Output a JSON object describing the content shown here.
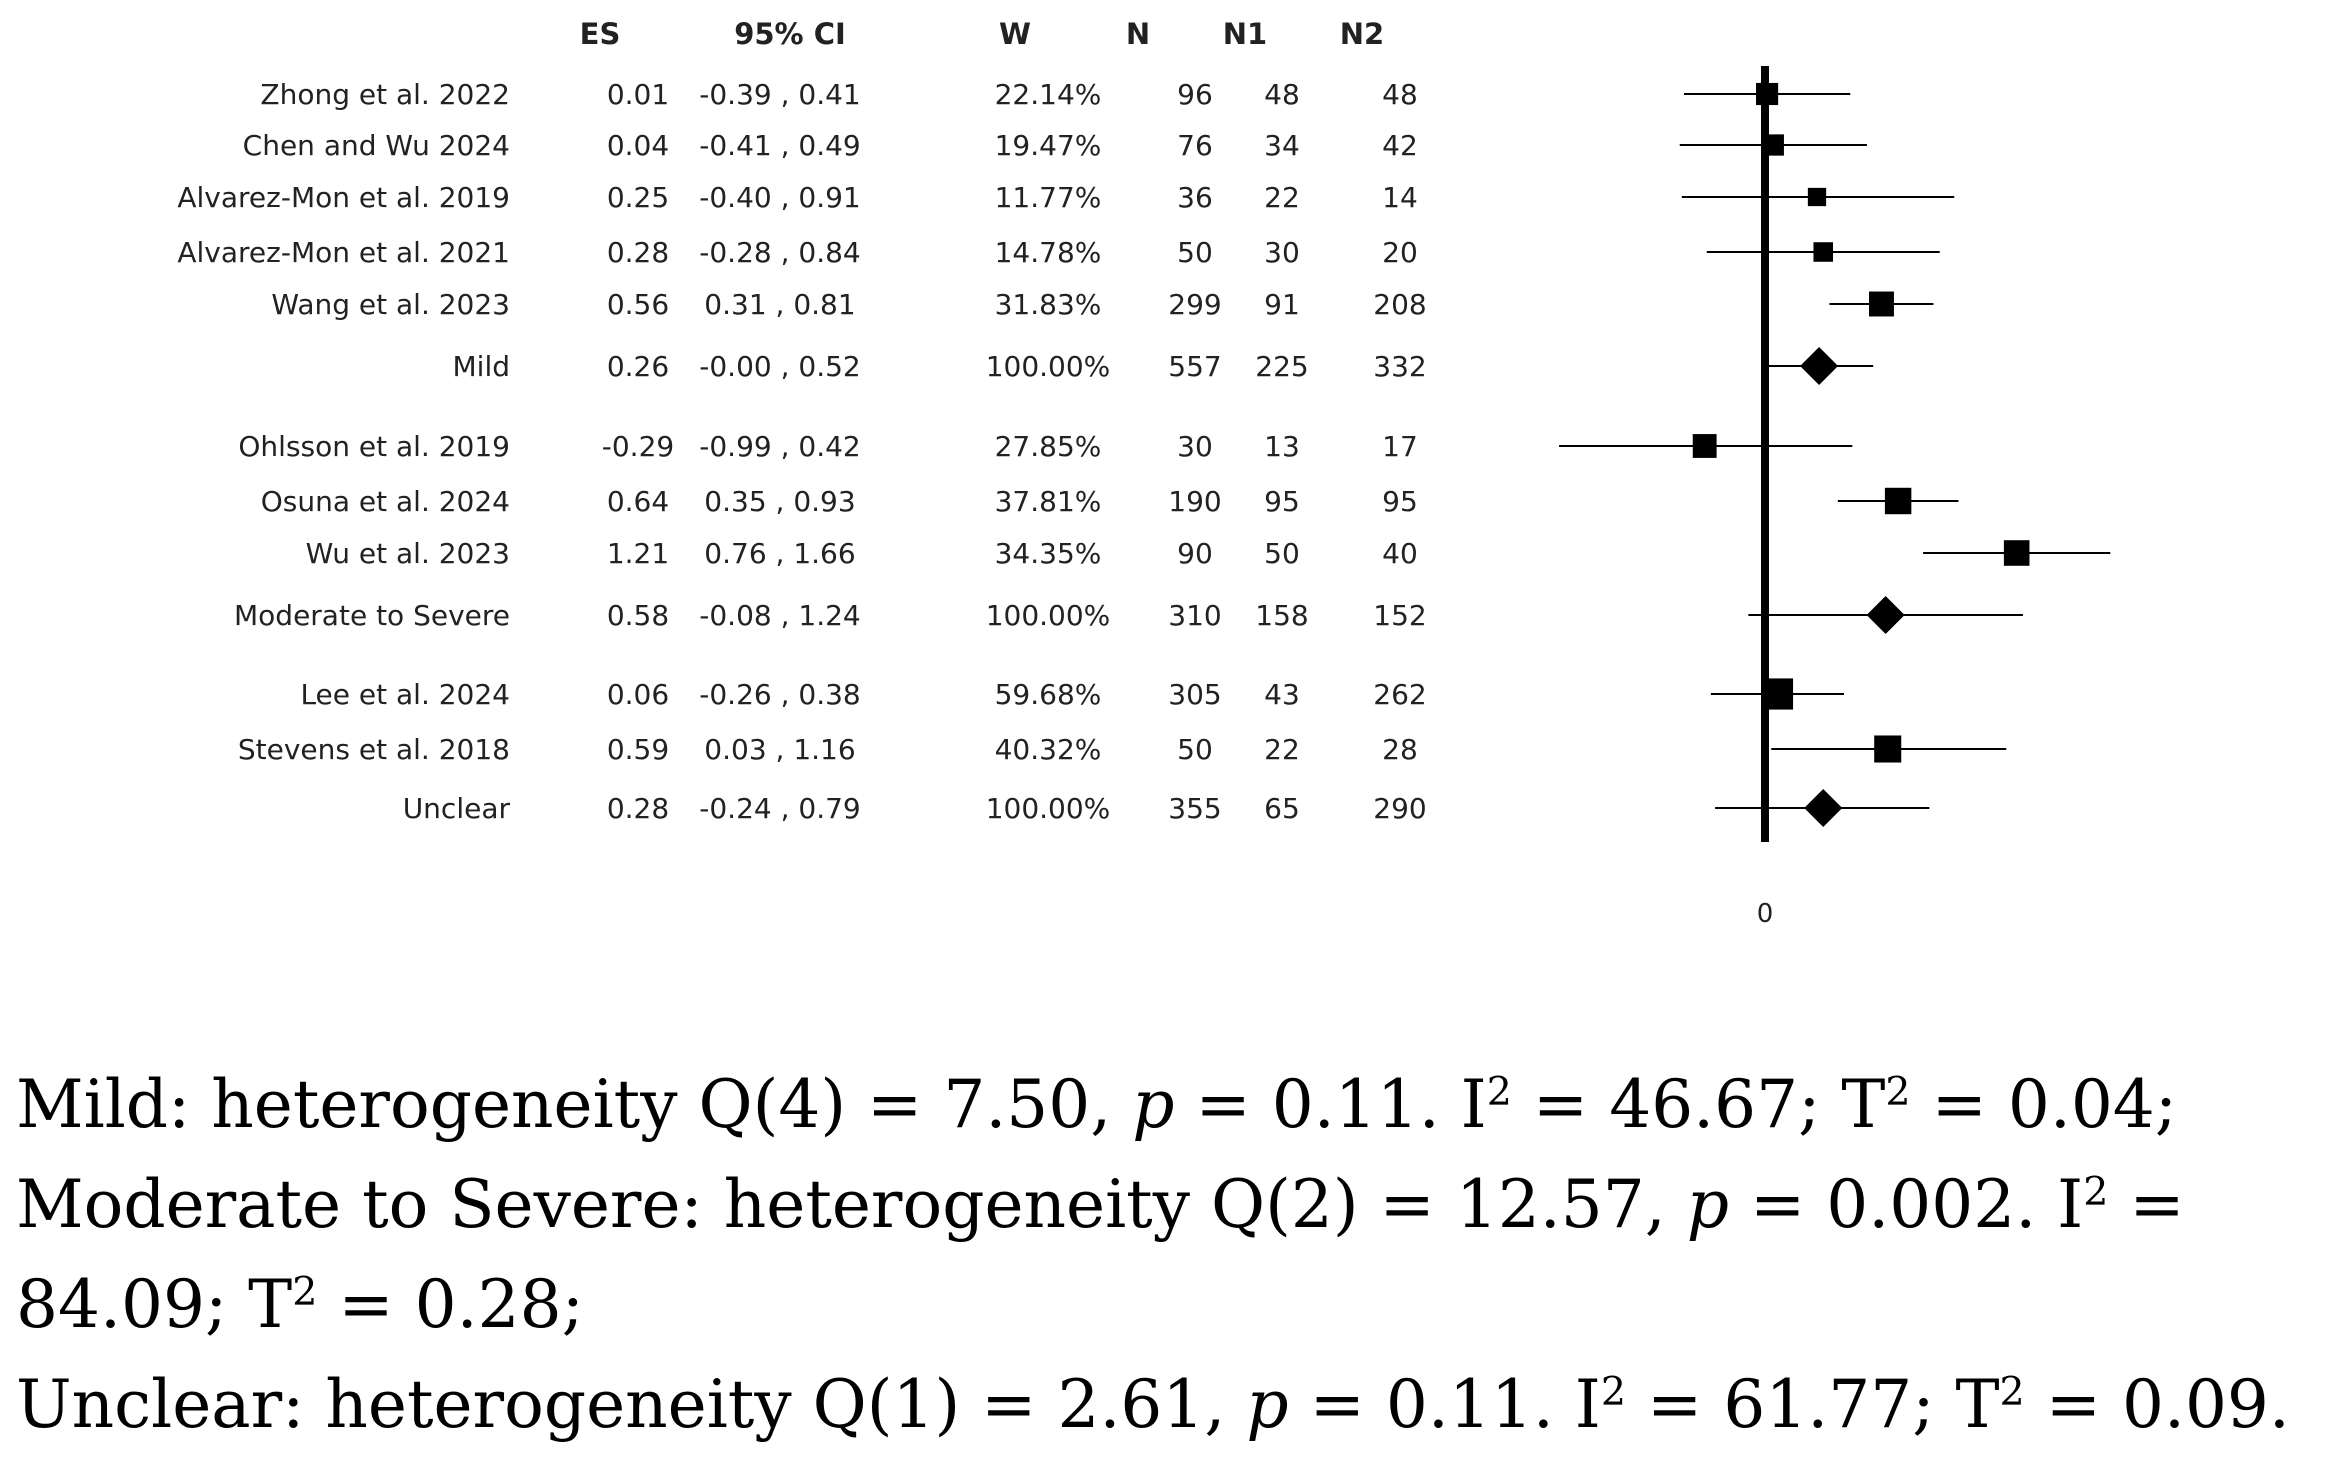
{
  "chart_data": {
    "type": "forest",
    "columns": [
      "ES",
      "95% CI",
      "W",
      "N",
      "N1",
      "N2"
    ],
    "zero_label": "0",
    "x_range": [
      -1.1,
      1.85
    ],
    "groups": [
      {
        "name": "Mild",
        "studies": [
          {
            "label": "Zhong et al. 2022",
            "es": "0.01",
            "ci": "-0.39 , 0.41",
            "w": "22.14%",
            "n": "96",
            "n1": "48",
            "n2": "48",
            "es_v": 0.01,
            "lo": -0.39,
            "hi": 0.41,
            "wt": 22.14
          },
          {
            "label": "Chen and Wu 2024",
            "es": "0.04",
            "ci": "-0.41 , 0.49",
            "w": "19.47%",
            "n": "76",
            "n1": "34",
            "n2": "42",
            "es_v": 0.04,
            "lo": -0.41,
            "hi": 0.49,
            "wt": 19.47
          },
          {
            "label": "Alvarez-Mon et al. 2019",
            "es": "0.25",
            "ci": "-0.40 , 0.91",
            "w": "11.77%",
            "n": "36",
            "n1": "22",
            "n2": "14",
            "es_v": 0.25,
            "lo": -0.4,
            "hi": 0.91,
            "wt": 11.77
          },
          {
            "label": "Alvarez-Mon et al. 2021",
            "es": "0.28",
            "ci": "-0.28 , 0.84",
            "w": "14.78%",
            "n": "50",
            "n1": "30",
            "n2": "20",
            "es_v": 0.28,
            "lo": -0.28,
            "hi": 0.84,
            "wt": 14.78
          },
          {
            "label": "Wang et al. 2023",
            "es": "0.56",
            "ci": "0.31 , 0.81",
            "w": "31.83%",
            "n": "299",
            "n1": "91",
            "n2": "208",
            "es_v": 0.56,
            "lo": 0.31,
            "hi": 0.81,
            "wt": 31.83
          }
        ],
        "summary": {
          "label": "Mild",
          "es": "0.26",
          "ci": "-0.00 , 0.52",
          "w": "100.00%",
          "n": "557",
          "n1": "225",
          "n2": "332",
          "es_v": 0.26,
          "lo": -0.0,
          "hi": 0.52
        }
      },
      {
        "name": "Moderate to Severe",
        "studies": [
          {
            "label": "Ohlsson et al. 2019",
            "es": "-0.29",
            "ci": "-0.99 , 0.42",
            "w": "27.85%",
            "n": "30",
            "n1": "13",
            "n2": "17",
            "es_v": -0.29,
            "lo": -0.99,
            "hi": 0.42,
            "wt": 27.85
          },
          {
            "label": "Osuna et al. 2024",
            "es": "0.64",
            "ci": "0.35 , 0.93",
            "w": "37.81%",
            "n": "190",
            "n1": "95",
            "n2": "95",
            "es_v": 0.64,
            "lo": 0.35,
            "hi": 0.93,
            "wt": 37.81
          },
          {
            "label": "Wu et al. 2023",
            "es": "1.21",
            "ci": "0.76 , 1.66",
            "w": "34.35%",
            "n": "90",
            "n1": "50",
            "n2": "40",
            "es_v": 1.21,
            "lo": 0.76,
            "hi": 1.66,
            "wt": 34.35
          }
        ],
        "summary": {
          "label": "Moderate to Severe",
          "es": "0.58",
          "ci": "-0.08 , 1.24",
          "w": "100.00%",
          "n": "310",
          "n1": "158",
          "n2": "152",
          "es_v": 0.58,
          "lo": -0.08,
          "hi": 1.24
        }
      },
      {
        "name": "Unclear",
        "studies": [
          {
            "label": "Lee et al. 2024",
            "es": "0.06",
            "ci": "-0.26 , 0.38",
            "w": "59.68%",
            "n": "305",
            "n1": "43",
            "n2": "262",
            "es_v": 0.06,
            "lo": -0.26,
            "hi": 0.38,
            "wt": 59.68
          },
          {
            "label": "Stevens et al. 2018",
            "es": "0.59",
            "ci": "0.03 , 1.16",
            "w": "40.32%",
            "n": "50",
            "n1": "22",
            "n2": "28",
            "es_v": 0.59,
            "lo": 0.03,
            "hi": 1.16,
            "wt": 40.32
          }
        ],
        "summary": {
          "label": "Unclear",
          "es": "0.28",
          "ci": "-0.24 , 0.79",
          "w": "100.00%",
          "n": "355",
          "n1": "65",
          "n2": "290",
          "es_v": 0.28,
          "lo": -0.24,
          "hi": 0.79
        }
      }
    ]
  },
  "notes": {
    "mild": {
      "group": "Mild:",
      "het": "heterogeneity Q(4) = 7.50,",
      "p": "p",
      "p_val": "= 0.11. I",
      "i2": "= 46.67; T",
      "t2": "= 0.04;"
    },
    "moderate": {
      "group": "Moderate to Severe:",
      "het": "heterogeneity Q(2) = 12.57,",
      "p": "p",
      "p_val": "= 0.002. I",
      "i2": "= 84.09; T",
      "t2": "= 0.28;"
    },
    "unclear": {
      "group": "Unclear:",
      "het": "heterogeneity Q(1) = 2.61,",
      "p": "p",
      "p_val": "= 0.11. I",
      "i2": "= 61.77; T",
      "t2": "= 0.09."
    },
    "sup2": "2"
  }
}
